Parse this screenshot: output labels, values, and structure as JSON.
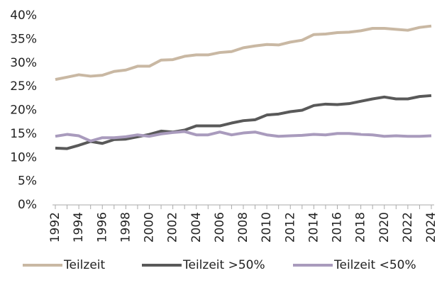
{
  "chart_data": {
    "type": "line",
    "categories": [
      "1992",
      null,
      "1994",
      null,
      "1996",
      null,
      "1998",
      null,
      "2000",
      null,
      "2002",
      null,
      "2004",
      null,
      "2006",
      null,
      "2008",
      null,
      "2010",
      null,
      "2012",
      null,
      "2014",
      null,
      "2016",
      null,
      "2018",
      null,
      "2020",
      null,
      "2022",
      null,
      "2024"
    ],
    "series": [
      {
        "name": "Teilzeit",
        "color": "#c9b8a3",
        "values": [
          26.5,
          27.0,
          27.5,
          27.2,
          27.4,
          28.2,
          28.5,
          29.3,
          29.3,
          30.6,
          30.7,
          31.4,
          31.7,
          31.7,
          32.2,
          32.4,
          33.2,
          33.6,
          33.9,
          33.8,
          34.4,
          34.8,
          36.0,
          36.1,
          36.4,
          36.5,
          36.8,
          37.3,
          37.3,
          37.1,
          36.9,
          37.5,
          37.8
        ]
      },
      {
        "name": "Teilzeit >50%",
        "color": "#595959",
        "values": [
          12.0,
          11.9,
          12.6,
          13.4,
          13.0,
          13.8,
          13.9,
          14.4,
          14.9,
          15.6,
          15.4,
          15.8,
          16.7,
          16.7,
          16.7,
          17.3,
          17.8,
          18.0,
          19.0,
          19.2,
          19.7,
          20.0,
          21.0,
          21.3,
          21.2,
          21.4,
          21.9,
          22.4,
          22.8,
          22.4,
          22.4,
          22.9,
          23.1
        ]
      },
      {
        "name": "Teilzeit <50%",
        "color": "#a99bbd",
        "values": [
          14.5,
          14.9,
          14.6,
          13.5,
          14.2,
          14.2,
          14.4,
          14.8,
          14.5,
          15.0,
          15.3,
          15.5,
          14.8,
          14.8,
          15.4,
          14.8,
          15.2,
          15.4,
          14.8,
          14.5,
          14.6,
          14.7,
          14.9,
          14.8,
          15.1,
          15.1,
          14.9,
          14.8,
          14.5,
          14.6,
          14.5,
          14.5,
          14.6
        ]
      }
    ],
    "ylim": [
      0,
      40
    ],
    "yticks": [
      {
        "value": 0,
        "label": "0%"
      },
      {
        "value": 5,
        "label": "5%"
      },
      {
        "value": 10,
        "label": "10%"
      },
      {
        "value": 15,
        "label": "15%"
      },
      {
        "value": 20,
        "label": "20%"
      },
      {
        "value": 25,
        "label": "25%"
      },
      {
        "value": 30,
        "label": "30%"
      },
      {
        "value": 35,
        "label": "35%"
      },
      {
        "value": 40,
        "label": "40%"
      }
    ],
    "grid": false,
    "legend": "bottom"
  }
}
